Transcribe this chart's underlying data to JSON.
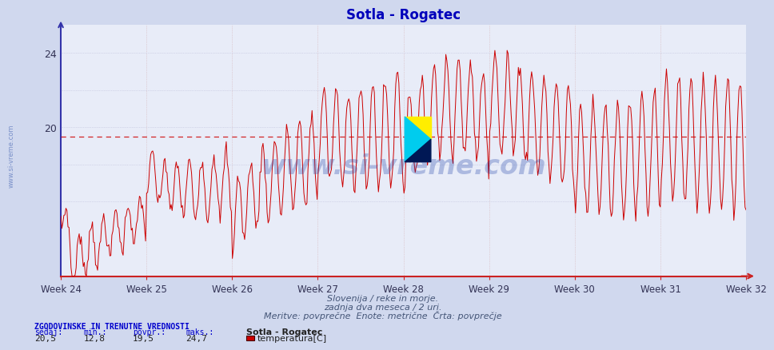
{
  "title": "Sotla - Rogatec",
  "title_color": "#0000bb",
  "bg_color": "#d0d8ee",
  "plot_bg_color": "#e8ecf8",
  "ylim": [
    12.0,
    25.5
  ],
  "yticks": [
    20,
    24
  ],
  "ytick_labels": [
    "20",
    "24"
  ],
  "week_labels": [
    "Week 24",
    "Week 25",
    "Week 26",
    "Week 27",
    "Week 28",
    "Week 29",
    "Week 30",
    "Week 31",
    "Week 32"
  ],
  "avg_line": 19.5,
  "sedaj": "20,5",
  "min_val": "12,8",
  "povpr": "19,5",
  "maks": "24,7",
  "station": "Sotla - Rogatec",
  "param": "temperatura[C]",
  "line_color": "#cc0000",
  "avg_color": "#cc0000",
  "subtitle1": "Slovenija / reke in morje.",
  "subtitle2": "zadnja dva meseca / 2 uri.",
  "subtitle3": "Meritve: povprečne  Enote: metrične  Črta: povprečje",
  "legend_title": "ZGODOVINSKE IN TRENUTNE VREDNOSTI",
  "watermark": "www.si-vreme.com",
  "n_days": 56,
  "meas_per_day": 12,
  "seed": 7
}
